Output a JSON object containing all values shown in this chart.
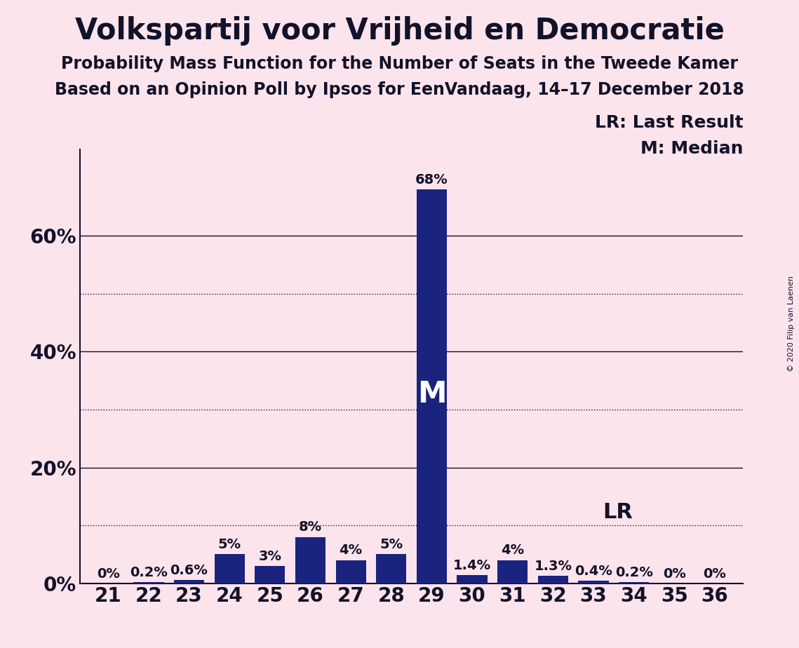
{
  "title": "Volkspartij voor Vrijheid en Democratie",
  "subtitle1": "Probability Mass Function for the Number of Seats in the Tweede Kamer",
  "subtitle2": "Based on an Opinion Poll by Ipsos for EenVandaag, 14–17 December 2018",
  "copyright": "© 2020 Filip van Laenen",
  "legend_lr": "LR: Last Result",
  "legend_m": "M: Median",
  "seats": [
    21,
    22,
    23,
    24,
    25,
    26,
    27,
    28,
    29,
    30,
    31,
    32,
    33,
    34,
    35,
    36
  ],
  "values": [
    0.0,
    0.2,
    0.6,
    5.0,
    3.0,
    8.0,
    4.0,
    5.0,
    68.0,
    1.4,
    4.0,
    1.3,
    0.4,
    0.2,
    0.0,
    0.0
  ],
  "labels": [
    "0%",
    "0.2%",
    "0.6%",
    "5%",
    "3%",
    "8%",
    "4%",
    "5%",
    "68%",
    "1.4%",
    "4%",
    "1.3%",
    "0.4%",
    "0.2%",
    "0%",
    "0%"
  ],
  "bar_color": "#1a237e",
  "background_color": "#fce4ec",
  "text_color": "#12122a",
  "median_seat": 29,
  "median_label": "M",
  "lr_value": 10.0,
  "lr_label": "LR",
  "ylim": [
    0,
    75
  ],
  "solid_yticks": [
    20,
    40,
    60
  ],
  "dotted_yticks": [
    10,
    30,
    50
  ],
  "ytick_labels_pos": [
    0,
    20,
    40,
    60
  ],
  "ytick_labels_val": [
    "0%",
    "20%",
    "40%",
    "60%"
  ],
  "title_fontsize": 30,
  "subtitle_fontsize": 17,
  "bar_label_fontsize": 14,
  "axis_fontsize": 20,
  "legend_fontsize": 18,
  "median_fontsize": 30,
  "lr_fontsize": 22,
  "copyright_fontsize": 8
}
